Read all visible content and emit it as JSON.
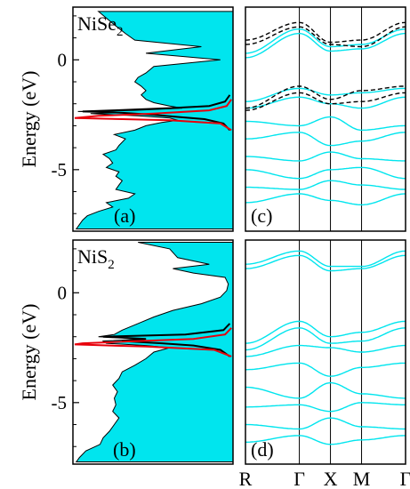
{
  "chart_data": [
    {
      "type": "area",
      "panel": "a",
      "panel_label": "(a)",
      "compound_label": "NiSe",
      "compound_subscript": "2",
      "ylabel": "Energy (eV)",
      "ylim": [
        -7.8,
        2.4
      ],
      "yticks": [
        0,
        -5
      ],
      "ytick_labels": [
        "0",
        "-5"
      ],
      "orientation": "horizontal-dos",
      "series": [
        {
          "name": "",
          "color": "#00e5ee",
          "energy": [
            2.2,
            1.6,
            1.2,
            0.9,
            0.6,
            0.3,
            0.0,
            -0.3,
            -0.6,
            -0.8,
            -1.0,
            -1.2,
            -1.4,
            -1.6,
            -1.8,
            -1.95,
            -2.1,
            -2.2,
            -2.3,
            -2.35,
            -2.4,
            -2.45,
            -2.55,
            -2.65,
            -2.75,
            -2.85,
            -3.0,
            -3.2,
            -3.4,
            -3.6,
            -3.9,
            -4.1,
            -4.3,
            -4.5,
            -4.7,
            -4.9,
            -5.1,
            -5.3,
            -5.5,
            -5.7,
            -5.9,
            -6.1,
            -6.3,
            -6.5,
            -6.7,
            -6.9,
            -7.1,
            -7.3,
            -7.5,
            -7.7
          ],
          "dos": [
            0.85,
            0.75,
            0.68,
            0.62,
            0.2,
            0.55,
            0.08,
            0.5,
            0.55,
            0.6,
            0.62,
            0.58,
            0.55,
            0.58,
            0.55,
            0.5,
            0.4,
            0.32,
            0.62,
            0.98,
            0.7,
            0.9,
            0.6,
            0.4,
            0.35,
            0.45,
            0.55,
            0.62,
            0.75,
            0.68,
            0.72,
            0.74,
            0.82,
            0.78,
            0.76,
            0.8,
            0.72,
            0.74,
            0.7,
            0.72,
            0.74,
            0.62,
            0.66,
            0.8,
            0.76,
            0.85,
            0.92,
            0.95,
            0.97,
            0.99
          ]
        },
        {
          "name": "",
          "color": "#000000",
          "energy": [
            -1.6,
            -1.9,
            -2.1,
            -2.2,
            -2.3,
            -2.35,
            -2.4,
            -2.5,
            -2.6,
            -2.7,
            -2.9,
            -3.2
          ],
          "dos": [
            0.02,
            0.05,
            0.15,
            0.4,
            0.75,
            0.95,
            0.72,
            0.5,
            0.35,
            0.18,
            0.06,
            0.02
          ]
        },
        {
          "name": "",
          "color": "#e8000b",
          "energy": [
            -1.8,
            -2.1,
            -2.3,
            -2.45,
            -2.55,
            -2.65,
            -2.75,
            -2.9,
            -3.2
          ],
          "dos": [
            0.01,
            0.04,
            0.15,
            0.5,
            0.85,
            1.0,
            0.4,
            0.08,
            0.01
          ]
        }
      ]
    },
    {
      "type": "area",
      "panel": "b",
      "panel_label": "(b)",
      "compound_label": "NiS",
      "compound_subscript": "2",
      "ylabel": "Energy (eV)",
      "ylim": [
        -7.8,
        2.4
      ],
      "yticks": [
        0,
        -5
      ],
      "ytick_labels": [
        "0",
        "-5"
      ],
      "orientation": "horizontal-dos",
      "series": [
        {
          "name": "",
          "color": "#00e5ee",
          "energy": [
            2.3,
            2.0,
            1.6,
            1.3,
            1.1,
            0.9,
            0.7,
            0.4,
            0.1,
            -0.2,
            -0.5,
            -0.8,
            -1.1,
            -1.4,
            -1.7,
            -1.9,
            -2.0,
            -2.1,
            -2.2,
            -2.3,
            -2.4,
            -2.5,
            -2.7,
            -3.0,
            -3.3,
            -3.6,
            -3.9,
            -4.2,
            -4.5,
            -4.8,
            -5.1,
            -5.4,
            -5.7,
            -6.0,
            -6.3,
            -6.6,
            -6.9,
            -7.2,
            -7.5,
            -7.7
          ],
          "dos": [
            0.6,
            0.4,
            0.35,
            0.15,
            0.38,
            0.25,
            0.05,
            0.03,
            0.04,
            0.08,
            0.2,
            0.38,
            0.5,
            0.6,
            0.7,
            0.75,
            0.85,
            0.55,
            0.82,
            0.8,
            0.55,
            0.4,
            0.5,
            0.55,
            0.62,
            0.7,
            0.72,
            0.76,
            0.73,
            0.75,
            0.74,
            0.76,
            0.72,
            0.75,
            0.78,
            0.82,
            0.84,
            0.93,
            0.97,
            0.99
          ]
        },
        {
          "name": "",
          "color": "#000000",
          "energy": [
            -1.4,
            -1.7,
            -1.9,
            -2.0,
            -2.1,
            -2.2,
            -2.3,
            -2.4,
            -2.6,
            -2.9
          ],
          "dos": [
            0.02,
            0.06,
            0.3,
            0.82,
            0.55,
            0.7,
            0.45,
            0.25,
            0.08,
            0.02
          ]
        },
        {
          "name": "",
          "color": "#e8000b",
          "energy": [
            -1.6,
            -1.9,
            -2.1,
            -2.2,
            -2.3,
            -2.35,
            -2.45,
            -2.6,
            -2.9
          ],
          "dos": [
            0.01,
            0.05,
            0.25,
            0.6,
            0.95,
            1.0,
            0.55,
            0.12,
            0.01
          ]
        }
      ]
    },
    {
      "type": "line",
      "panel": "c",
      "panel_label": "(c)",
      "ylim": [
        -7.8,
        2.4
      ],
      "kpoints": [
        "R",
        "Γ",
        "X",
        "M",
        "Γ"
      ],
      "kpoint_positions": [
        0,
        1.732,
        2.732,
        3.732,
        5.146
      ],
      "series": [
        {
          "name": "",
          "color": "#00e5ee",
          "dashed": false,
          "k": [
            0,
            1.732,
            2.732,
            3.732,
            5.146
          ],
          "e": [
            0.3,
            1.4,
            0.6,
            0.7,
            1.4
          ]
        },
        {
          "name": "",
          "color": "#00e5ee",
          "dashed": false,
          "k": [
            0,
            1.732,
            2.732,
            3.732,
            5.146
          ],
          "e": [
            0.1,
            1.2,
            0.4,
            0.5,
            1.2
          ]
        },
        {
          "name": "",
          "color": "#00e5ee",
          "dashed": false,
          "k": [
            0,
            1.732,
            2.732,
            3.732,
            5.146
          ],
          "e": [
            -1.9,
            -1.3,
            -1.6,
            -1.5,
            -1.3
          ]
        },
        {
          "name": "",
          "color": "#00e5ee",
          "dashed": false,
          "k": [
            0,
            1.732,
            2.732,
            3.732,
            5.146
          ],
          "e": [
            -2.2,
            -1.7,
            -2.0,
            -2.2,
            -1.7
          ]
        },
        {
          "name": "",
          "color": "#00e5ee",
          "dashed": false,
          "k": [
            0,
            1.732,
            2.732,
            3.732,
            5.146
          ],
          "e": [
            -2.8,
            -3.0,
            -2.6,
            -3.2,
            -3.0
          ]
        },
        {
          "name": "",
          "color": "#00e5ee",
          "dashed": false,
          "k": [
            0,
            1.732,
            2.732,
            3.732,
            5.146
          ],
          "e": [
            -3.6,
            -3.3,
            -3.9,
            -3.7,
            -3.3
          ]
        },
        {
          "name": "",
          "color": "#00e5ee",
          "dashed": false,
          "k": [
            0,
            1.732,
            2.732,
            3.732,
            5.146
          ],
          "e": [
            -4.4,
            -4.6,
            -4.2,
            -4.5,
            -4.6
          ]
        },
        {
          "name": "",
          "color": "#00e5ee",
          "dashed": false,
          "k": [
            0,
            1.732,
            2.732,
            3.732,
            5.146
          ],
          "e": [
            -5.0,
            -5.4,
            -5.0,
            -4.9,
            -5.4
          ]
        },
        {
          "name": "",
          "color": "#00e5ee",
          "dashed": false,
          "k": [
            0,
            1.732,
            2.732,
            3.732,
            5.146
          ],
          "e": [
            -5.8,
            -5.9,
            -5.5,
            -5.7,
            -5.9
          ]
        },
        {
          "name": "",
          "color": "#00e5ee",
          "dashed": false,
          "k": [
            0,
            1.732,
            2.732,
            3.732,
            5.146
          ],
          "e": [
            -6.5,
            -6.1,
            -6.4,
            -6.6,
            -6.1
          ]
        },
        {
          "name": "",
          "color": "#000000",
          "dashed": true,
          "k": [
            0,
            1.732,
            2.732,
            3.732,
            5.146
          ],
          "e": [
            0.9,
            1.7,
            0.8,
            0.9,
            1.7
          ]
        },
        {
          "name": "",
          "color": "#000000",
          "dashed": true,
          "k": [
            0,
            1.732,
            2.732,
            3.732,
            5.146
          ],
          "e": [
            0.7,
            1.5,
            0.7,
            0.6,
            1.5
          ]
        },
        {
          "name": "",
          "color": "#000000",
          "dashed": true,
          "k": [
            0,
            1.732,
            2.732,
            3.732,
            5.146
          ],
          "e": [
            -2.2,
            -1.2,
            -1.8,
            -1.4,
            -1.2
          ]
        },
        {
          "name": "",
          "color": "#000000",
          "dashed": true,
          "k": [
            0,
            1.732,
            2.732,
            3.732,
            5.146
          ],
          "e": [
            -2.3,
            -1.5,
            -2.0,
            -1.9,
            -1.5
          ]
        }
      ]
    },
    {
      "type": "line",
      "panel": "d",
      "panel_label": "(d)",
      "ylim": [
        -7.8,
        2.4
      ],
      "kpoints": [
        "R",
        "Γ",
        "X",
        "M",
        "Γ"
      ],
      "kpoint_positions": [
        0,
        1.732,
        2.732,
        3.732,
        5.146
      ],
      "series": [
        {
          "name": "",
          "color": "#00e5ee",
          "dashed": false,
          "k": [
            0,
            1.732,
            2.732,
            3.732,
            5.146
          ],
          "e": [
            1.3,
            1.9,
            1.2,
            1.2,
            1.9
          ]
        },
        {
          "name": "",
          "color": "#00e5ee",
          "dashed": false,
          "k": [
            0,
            1.732,
            2.732,
            3.732,
            5.146
          ],
          "e": [
            1.1,
            1.7,
            1.0,
            1.1,
            1.7
          ]
        },
        {
          "name": "",
          "color": "#00e5ee",
          "dashed": false,
          "k": [
            0,
            1.732,
            2.732,
            3.732,
            5.146
          ],
          "e": [
            -2.3,
            -1.3,
            -2.0,
            -1.8,
            -1.3
          ]
        },
        {
          "name": "",
          "color": "#00e5ee",
          "dashed": false,
          "k": [
            0,
            1.732,
            2.732,
            3.732,
            5.146
          ],
          "e": [
            -2.6,
            -1.6,
            -2.3,
            -2.2,
            -1.6
          ]
        },
        {
          "name": "",
          "color": "#00e5ee",
          "dashed": false,
          "k": [
            0,
            1.732,
            2.732,
            3.732,
            5.146
          ],
          "e": [
            -2.9,
            -2.4,
            -2.5,
            -2.7,
            -2.4
          ]
        },
        {
          "name": "",
          "color": "#00e5ee",
          "dashed": false,
          "k": [
            0,
            1.732,
            2.732,
            3.732,
            5.146
          ],
          "e": [
            -3.5,
            -3.2,
            -3.8,
            -3.4,
            -3.2
          ]
        },
        {
          "name": "",
          "color": "#00e5ee",
          "dashed": false,
          "k": [
            0,
            1.732,
            2.732,
            3.732,
            5.146
          ],
          "e": [
            -4.3,
            -4.8,
            -4.1,
            -4.6,
            -4.8
          ]
        },
        {
          "name": "",
          "color": "#00e5ee",
          "dashed": false,
          "k": [
            0,
            1.732,
            2.732,
            3.732,
            5.146
          ],
          "e": [
            -5.2,
            -5.1,
            -5.4,
            -5.0,
            -5.1
          ]
        },
        {
          "name": "",
          "color": "#00e5ee",
          "dashed": false,
          "k": [
            0,
            1.732,
            2.732,
            3.732,
            5.146
          ],
          "e": [
            -6.0,
            -6.2,
            -5.7,
            -6.1,
            -6.2
          ]
        },
        {
          "name": "",
          "color": "#00e5ee",
          "dashed": false,
          "k": [
            0,
            1.732,
            2.732,
            3.732,
            5.146
          ],
          "e": [
            -6.8,
            -6.5,
            -6.9,
            -6.7,
            -6.5
          ]
        }
      ]
    }
  ]
}
